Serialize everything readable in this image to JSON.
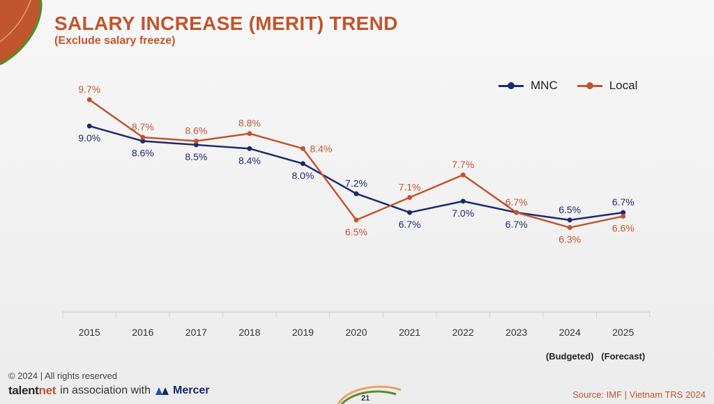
{
  "header": {
    "title": "SALARY INCREASE (MERIT) TREND",
    "subtitle": "(Exclude salary freeze)"
  },
  "legend": {
    "mnc_label": "MNC",
    "local_label": "Local"
  },
  "colors": {
    "mnc": "#1b2a6b",
    "local": "#c0552e",
    "axis": "#cfcfcf"
  },
  "chart_data": {
    "type": "line",
    "title": "SALARY INCREASE (MERIT) TREND",
    "subtitle": "(Exclude salary freeze)",
    "categories": [
      "2015",
      "2016",
      "2017",
      "2018",
      "2019",
      "2020",
      "2021",
      "2022",
      "2023",
      "2024",
      "2025"
    ],
    "category_notes": {
      "2024": "(Budgeted)",
      "2025": "(Forecast)"
    },
    "series": [
      {
        "name": "MNC",
        "values": [
          9.0,
          8.6,
          8.5,
          8.4,
          8.0,
          7.2,
          6.7,
          7.0,
          6.7,
          6.5,
          6.7
        ],
        "labels": [
          "9.0%",
          "8.6%",
          "8.5%",
          "8.4%",
          "8.0%",
          "7.2%",
          "6.7%",
          "7.0%",
          "6.7%",
          "6.5%",
          "6.7%"
        ]
      },
      {
        "name": "Local",
        "values": [
          9.7,
          8.7,
          8.6,
          8.8,
          8.4,
          6.5,
          7.1,
          7.7,
          6.7,
          6.3,
          6.6
        ],
        "labels": [
          "9.7%",
          "8.7%",
          "8.6%",
          "8.8%",
          "8.4%",
          "6.5%",
          "7.1%",
          "7.7%",
          "6.7%",
          "6.3%",
          "6.6%"
        ]
      }
    ],
    "xlabel": "",
    "ylabel": "",
    "ylim": [
      4.2,
      10.5
    ],
    "legend_position": "top-right",
    "grid": false
  },
  "footer": {
    "copyright": "© 2024 | All rights reserved",
    "brand_left": "talent",
    "brand_accent": "net",
    "association": "in association with",
    "partner": "Mercer",
    "source": "Source: IMF | Vietnam TRS 2024",
    "page_number": "21"
  }
}
